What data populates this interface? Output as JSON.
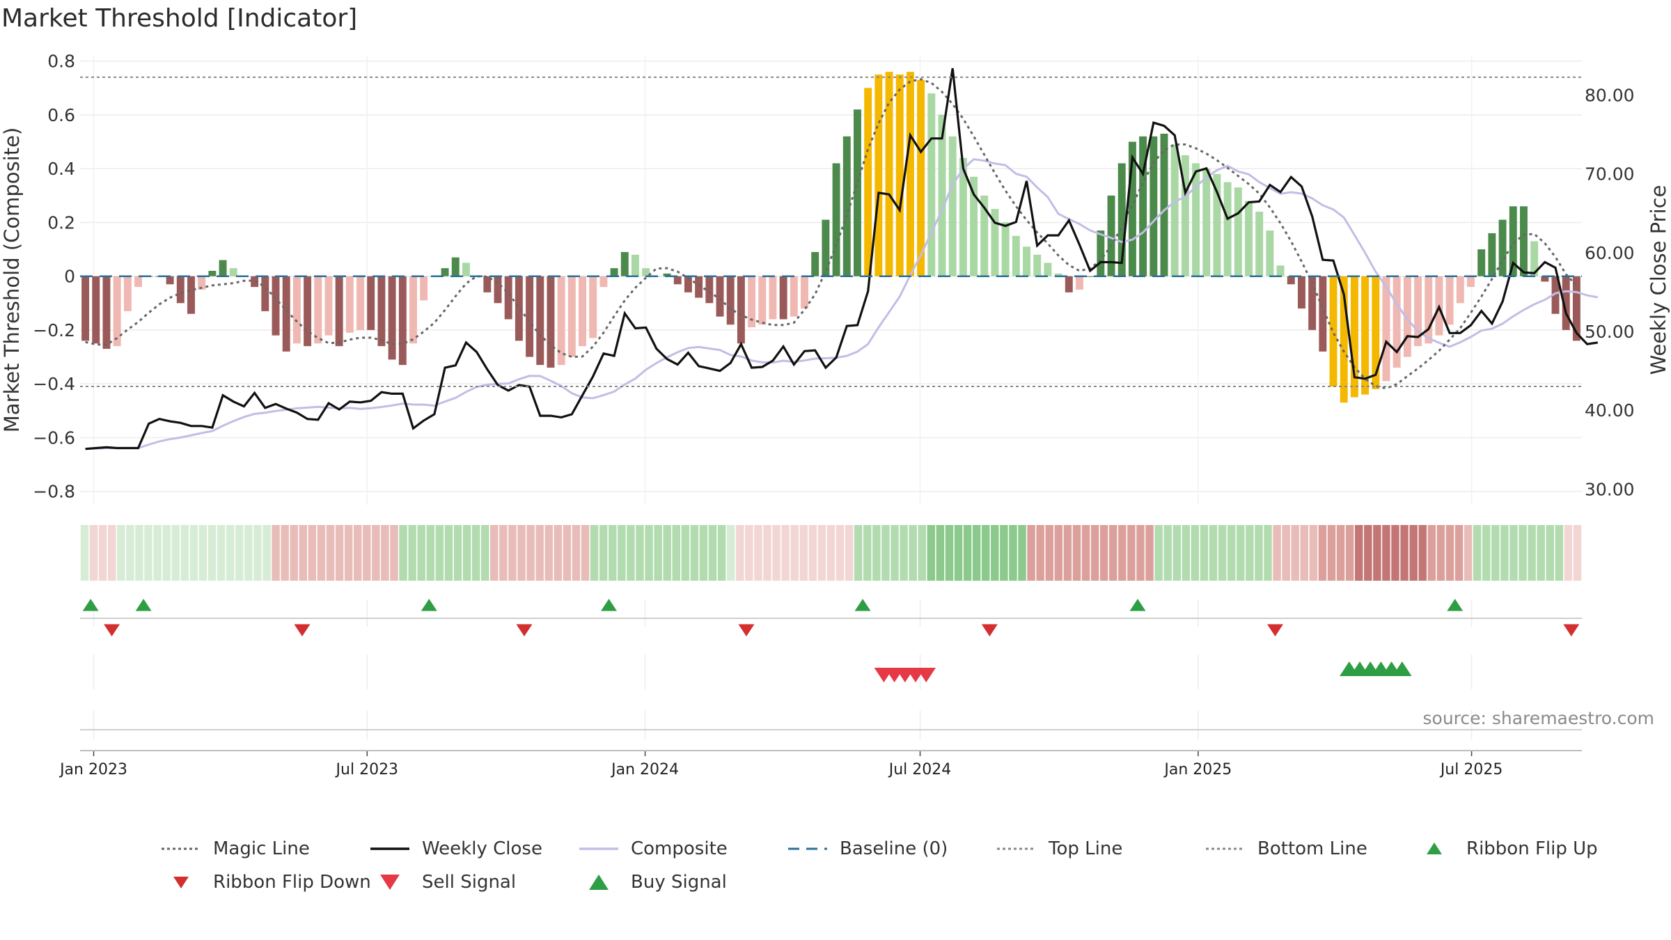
{
  "title": "Market Threshold [Indicator]",
  "source": "source: sharemaestro.com",
  "colors": {
    "pos_strong": "#4c8a4c",
    "pos_light": "#a9d8a4",
    "neg_strong": "#9b5a5a",
    "neg_light": "#f0b8b2",
    "extreme": "#f5b800",
    "close": "#111111",
    "composite": "#c2bde6",
    "magic": "#666666",
    "baseline": "#2a6f9a",
    "threshold": "#888888",
    "flip_up": "#2e9e44",
    "flip_down": "#d32f2f",
    "sell": "#e53945",
    "buy": "#2e9e44"
  },
  "legend": [
    {
      "key": "magic",
      "label": "Magic Line",
      "style": "dot"
    },
    {
      "key": "close",
      "label": "Weekly Close",
      "style": "solid"
    },
    {
      "key": "composite",
      "label": "Composite",
      "style": "solid"
    },
    {
      "key": "baseline",
      "label": "Baseline (0)",
      "style": "dash"
    },
    {
      "key": "threshold",
      "label": "Top Line",
      "style": "dot"
    },
    {
      "key": "threshold",
      "label": "Bottom Line",
      "style": "dot"
    },
    {
      "key": "flip_up",
      "label": "Ribbon Flip Up",
      "style": "tri-up"
    },
    {
      "key": "flip_down",
      "label": "Ribbon Flip Down",
      "style": "tri-down"
    },
    {
      "key": "sell",
      "label": "Sell Signal",
      "style": "tri-down-big"
    },
    {
      "key": "buy",
      "label": "Buy Signal",
      "style": "tri-up-big"
    }
  ],
  "chart_data": {
    "type": "bar",
    "title": "Market Threshold [Indicator]",
    "ylabel": "Market Threshold (Composite)",
    "ylabel_right": "Weekly Close Price",
    "ylim": [
      -0.85,
      0.82
    ],
    "ylim_right": [
      28,
      85
    ],
    "yticks": [
      0.8,
      0.6,
      0.4,
      0.2,
      0,
      -0.2,
      -0.4,
      -0.6,
      -0.8
    ],
    "ytick_labels": [
      "0.8",
      "0.6",
      "0.4",
      "0.2",
      "0",
      "−0.2",
      "−0.4",
      "−0.6",
      "−0.8"
    ],
    "yticks_right": [
      80,
      70,
      60,
      50,
      40,
      30
    ],
    "ytick_labels_right": [
      "80.00",
      "70.00",
      "60.00",
      "50.00",
      "40.00",
      "30.00"
    ],
    "x_start": "2022-12-23",
    "x_end": "2025-09-12",
    "xticks": [
      "2023-01-01",
      "2023-07-01",
      "2024-01-01",
      "2024-07-01",
      "2025-01-01",
      "2025-07-01"
    ],
    "xtick_labels": [
      "Jan 2023",
      "Jul 2023",
      "Jan 2024",
      "Jul 2024",
      "Jan 2025",
      "Jul 2025"
    ],
    "top_line": 0.74,
    "bottom_line": -0.41,
    "grid": true,
    "legend_position": "bottom",
    "composite_bars": [
      -0.24,
      -0.25,
      -0.27,
      -0.26,
      -0.13,
      -0.04,
      0,
      0,
      -0.03,
      -0.1,
      -0.14,
      -0.05,
      0.02,
      0.06,
      0.03,
      0,
      -0.04,
      -0.13,
      -0.22,
      -0.28,
      -0.25,
      -0.26,
      -0.25,
      -0.22,
      -0.26,
      -0.21,
      -0.2,
      -0.2,
      -0.26,
      -0.31,
      -0.33,
      -0.25,
      -0.09,
      0,
      0.03,
      0.07,
      0.05,
      0,
      -0.06,
      -0.1,
      -0.16,
      -0.24,
      -0.3,
      -0.33,
      -0.34,
      -0.33,
      -0.3,
      -0.26,
      -0.23,
      -0.04,
      0.03,
      0.09,
      0.08,
      0.03,
      0,
      0.01,
      -0.03,
      -0.06,
      -0.08,
      -0.1,
      -0.15,
      -0.18,
      -0.25,
      -0.19,
      -0.18,
      -0.16,
      -0.16,
      -0.15,
      -0.12,
      0.09,
      0.21,
      0.42,
      0.52,
      0.62,
      0.7,
      0.75,
      0.76,
      0.75,
      0.76,
      0.73,
      0.68,
      0.6,
      0.52,
      0.44,
      0.37,
      0.3,
      0.25,
      0.2,
      0.15,
      0.11,
      0.08,
      0.05,
      0.01,
      -0.06,
      -0.05,
      0,
      0.17,
      0.3,
      0.42,
      0.5,
      0.52,
      0.52,
      0.53,
      0.49,
      0.45,
      0.42,
      0.4,
      0.38,
      0.35,
      0.33,
      0.28,
      0.24,
      0.17,
      0.04,
      -0.03,
      -0.12,
      -0.2,
      -0.28,
      -0.41,
      -0.47,
      -0.45,
      -0.44,
      -0.42,
      -0.39,
      -0.34,
      -0.3,
      -0.26,
      -0.25,
      -0.22,
      -0.18,
      -0.1,
      -0.04,
      0.1,
      0.16,
      0.21,
      0.26,
      0.26,
      0.13,
      -0.02,
      -0.14,
      -0.2,
      -0.24
    ],
    "weekly_close": [
      35.1,
      35.2,
      35.3,
      35.2,
      35.2,
      35.2,
      38.3,
      38.9,
      38.6,
      38.4,
      38,
      38,
      37.8,
      41.9,
      41.1,
      40.5,
      42.2,
      40.3,
      40.8,
      40.2,
      39.7,
      38.9,
      38.8,
      40.9,
      40.1,
      41.1,
      41,
      41.2,
      42.3,
      42.1,
      42.1,
      37.7,
      38.7,
      39.5,
      45.4,
      45.7,
      48.6,
      47.4,
      45.2,
      43.2,
      42.5,
      43.2,
      43,
      39.3,
      39.3,
      39.1,
      39.5,
      41.9,
      44.3,
      47.2,
      46.9,
      52.3,
      50.4,
      50.5,
      47.8,
      46.5,
      45.8,
      47.3,
      45.6,
      45.3,
      45,
      46,
      48.4,
      45.4,
      45.5,
      46.3,
      48.1,
      45.8,
      47.5,
      47.6,
      45.4,
      46.7,
      50.7,
      50.8,
      55.1,
      67.6,
      67.4,
      65.4,
      74.9,
      72.8,
      74.5,
      74.5,
      83.4,
      70.7,
      67.4,
      65.7,
      63.8,
      63.4,
      63.9,
      69.1,
      60.9,
      62.2,
      62.2,
      64.1,
      61,
      57.7,
      58.8,
      58.8,
      58.7,
      72.1,
      70,
      76.5,
      76.1,
      74.9,
      67.6,
      70.3,
      70.7,
      67.7,
      64.3,
      65,
      66.4,
      66.5,
      68.6,
      67.7,
      69.6,
      68.4,
      64.6,
      59.1,
      59,
      54.7,
      44.2,
      44,
      44.5,
      48.7,
      47.4,
      49.4,
      49.3,
      50.3,
      53.1,
      49.8,
      49.8,
      50.8,
      52.6,
      51,
      53.8,
      58.7,
      57.5,
      57.4,
      58.8,
      58.1,
      52.3,
      49.8,
      48.4,
      48.6
    ]
  },
  "ribbon": {
    "values": [
      1,
      -1,
      -1,
      -1,
      1,
      1,
      1,
      1,
      1,
      1,
      1,
      1,
      1,
      1,
      1,
      1,
      1,
      1,
      1,
      1,
      1,
      -2,
      -2,
      -2,
      -2,
      -2,
      -2,
      -2,
      -2,
      -2,
      -2,
      -2,
      -2,
      -2,
      -2,
      2,
      2,
      2,
      2,
      2,
      2,
      2,
      2,
      2,
      2,
      -2,
      -2,
      -2,
      -2,
      -2,
      -2,
      -2,
      -2,
      -2,
      -2,
      -2,
      2,
      2,
      2,
      2,
      2,
      2,
      2,
      2,
      2,
      2,
      2,
      2,
      2,
      2,
      2,
      1,
      -1,
      -1,
      -1,
      -1,
      -1,
      -1,
      -1,
      -1,
      -1,
      -1,
      -1,
      -1,
      -1,
      2,
      2,
      2,
      2,
      2,
      2,
      2,
      2,
      3,
      3,
      3,
      3,
      3,
      3,
      3,
      3,
      3,
      3,
      3,
      -3,
      -3,
      -3,
      -3,
      -3,
      -3,
      -3,
      -3,
      -3,
      -3,
      -3,
      -3,
      -3,
      -3,
      2,
      2,
      2,
      2,
      2,
      2,
      2,
      2,
      2,
      2,
      2,
      2,
      2,
      -2,
      -2,
      -2,
      -2,
      -2,
      -3,
      -3,
      -3,
      -3,
      -4,
      -4,
      -4,
      -4,
      -4,
      -4,
      -4,
      -4,
      -3,
      -3,
      -3,
      -3,
      -2,
      2,
      2,
      2,
      2,
      2,
      2,
      2,
      2,
      2,
      2,
      -1,
      -1
    ]
  },
  "signals": {
    "flip_up": [
      "2022-12-30",
      "2023-02-03",
      "2023-08-11",
      "2023-12-08",
      "2024-05-24",
      "2024-11-22",
      "2025-06-20"
    ],
    "flip_down": [
      "2023-01-13",
      "2023-05-19",
      "2023-10-13",
      "2024-03-08",
      "2024-08-16",
      "2025-02-21",
      "2025-09-05"
    ],
    "sell": [
      "2024-06-07",
      "2024-06-14",
      "2024-06-21",
      "2024-06-28",
      "2024-07-05"
    ],
    "buy": [
      "2025-04-11",
      "2025-04-18",
      "2025-04-25",
      "2025-05-02",
      "2025-05-09",
      "2025-05-16"
    ]
  }
}
